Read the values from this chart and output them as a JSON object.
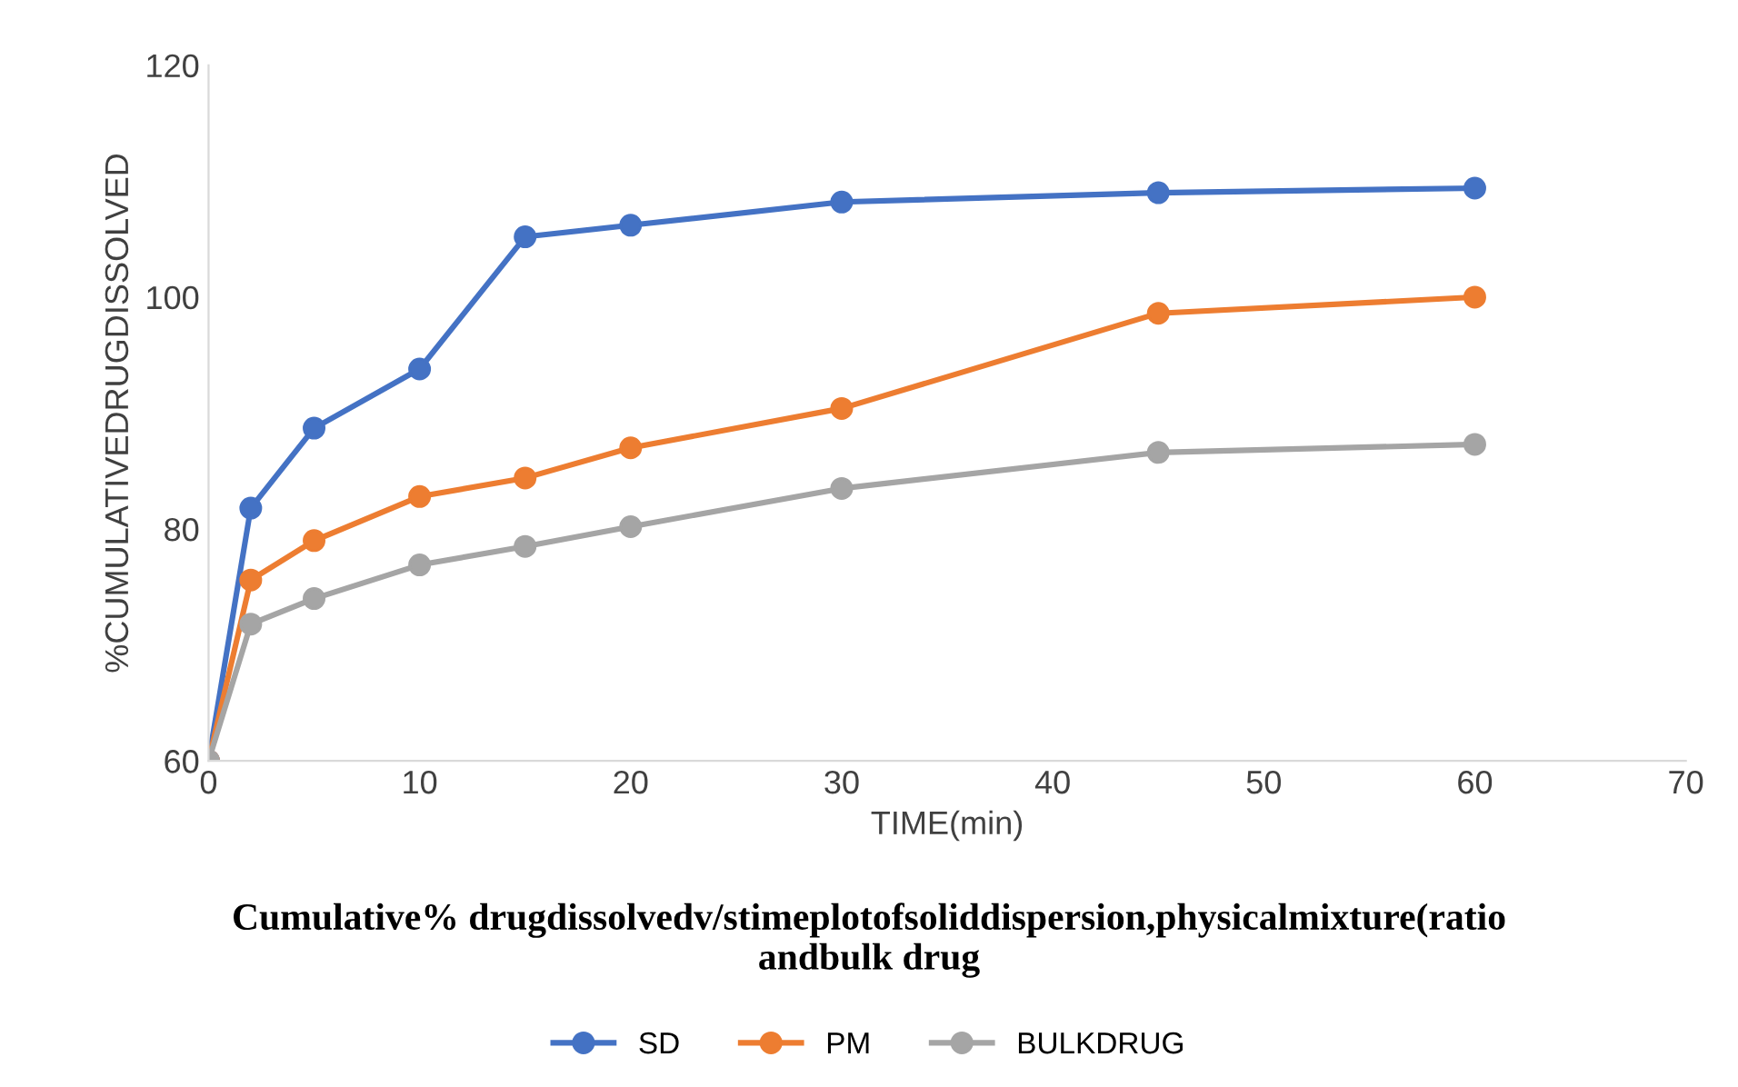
{
  "chart_data": {
    "type": "line",
    "title": "Cumulative% drugdissolvedv/stimeplotofsoliddispersion,physicalmixture(ratio\nandbulk drug",
    "xlabel": "TIME(min)",
    "ylabel": "%CUMULATIVEDRUGDISSOLVED",
    "x": [
      0,
      2,
      5,
      10,
      15,
      20,
      30,
      45,
      60
    ],
    "series": [
      {
        "name": "SD",
        "color": "#4472c4",
        "values": [
          60,
          81.8,
          88.7,
          93.8,
          105.2,
          106.2,
          108.2,
          109,
          109.4
        ]
      },
      {
        "name": "PM",
        "color": "#ed7d31",
        "values": [
          60,
          75.6,
          79,
          82.8,
          84.4,
          87,
          90.4,
          98.6,
          100
        ]
      },
      {
        "name": "BULKDRUG",
        "color": "#a5a5a5",
        "values": [
          60,
          71.8,
          74,
          76.9,
          78.5,
          80.2,
          83.5,
          86.6,
          87.3
        ]
      }
    ],
    "xlim": [
      0,
      70
    ],
    "xticks": [
      0,
      10,
      20,
      30,
      40,
      50,
      60,
      70
    ],
    "ylim": [
      60,
      120
    ],
    "yticks": [
      60,
      80,
      100,
      120
    ],
    "grid": false,
    "legend": "bottom",
    "marker": "circle",
    "line_style": "solid"
  }
}
